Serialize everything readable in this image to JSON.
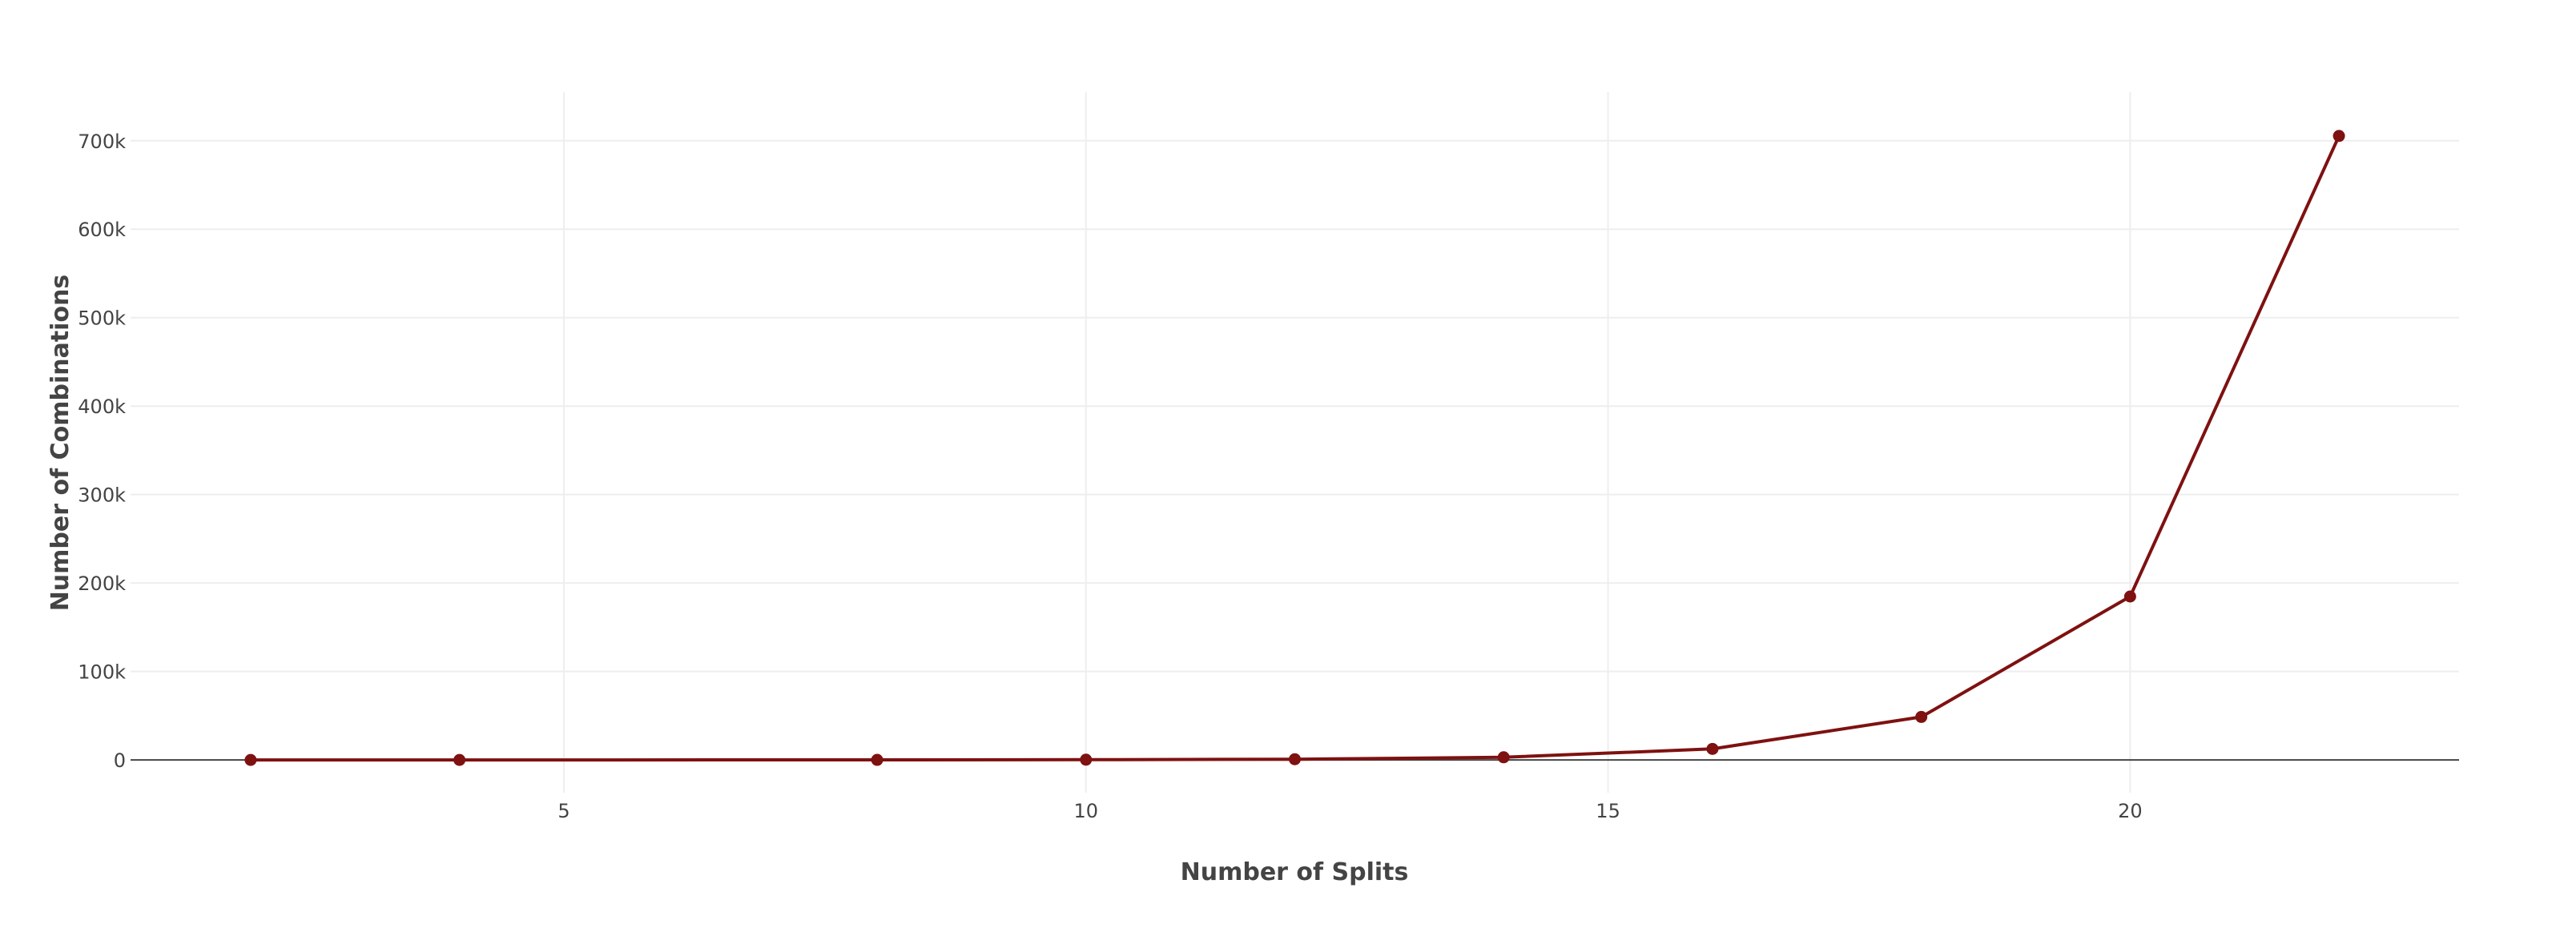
{
  "chart_data": {
    "type": "line",
    "title": "",
    "xlabel": "Number of Splits",
    "ylabel": "Number of Combinations",
    "xlim": [
      0.85,
      23.15
    ],
    "ylim": [
      -37000,
      755000
    ],
    "x_ticks": [
      5,
      10,
      15,
      20
    ],
    "x_tick_labels": [
      "5",
      "10",
      "15",
      "20"
    ],
    "y_ticks": [
      0,
      100000,
      200000,
      300000,
      400000,
      500000,
      600000,
      700000
    ],
    "y_tick_labels": [
      "0",
      "100k",
      "200k",
      "300k",
      "400k",
      "500k",
      "600k",
      "700k"
    ],
    "grid": true,
    "legend": "none",
    "series": [
      {
        "color": "#7f1111",
        "x": [
          2,
          4,
          8,
          10,
          12,
          14,
          16,
          18,
          20,
          22
        ],
        "y": [
          1,
          4,
          100,
          300,
          800,
          3000,
          12500,
          48600,
          184756,
          705432
        ]
      }
    ]
  }
}
